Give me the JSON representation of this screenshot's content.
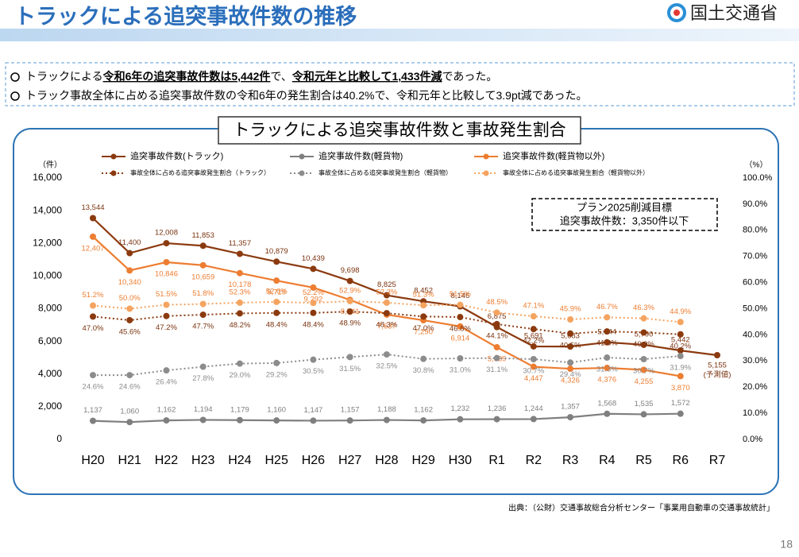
{
  "header": {
    "title": "トラックによる追突事故件数の推移",
    "organization": "国土交通省"
  },
  "bullets": [
    [
      {
        "text": "トラックによる"
      },
      {
        "text": "令和6年の追突事故件数は5,442件",
        "strong": true
      },
      {
        "text": "で、"
      },
      {
        "text": "令和元年と比較して1,433件減",
        "strong": true
      },
      {
        "text": "であった。"
      }
    ],
    [
      {
        "text": "トラック事故全体に占める追突事故件数の令和6年の発生割合は40.2%で、令和元年と比較して3.9pt減であった。"
      }
    ]
  ],
  "chart_data": {
    "type": "line",
    "title": "トラックによる追突事故件数と事故発生割合",
    "y_label": "（件）",
    "y2_label": "（%）",
    "categories": [
      "H20",
      "H21",
      "H22",
      "H23",
      "H24",
      "H25",
      "H26",
      "H27",
      "H28",
      "H29",
      "H30",
      "R1",
      "R2",
      "R3",
      "R4",
      "R5",
      "R6",
      "R7"
    ],
    "ylim": [
      0,
      16000
    ],
    "yticks": [
      0,
      {
        "value": 2000,
        "label": "2,000"
      },
      {
        "value": 4000,
        "label": "4,000"
      },
      {
        "value": 6000,
        "label": "6,000"
      },
      {
        "value": 8000,
        "label": "8,000"
      },
      {
        "value": 10000,
        "label": "10,000"
      },
      {
        "value": 12000,
        "label": "12,000"
      },
      {
        "value": 14000,
        "label": "14,000"
      },
      {
        "value": 16000,
        "label": "16,000"
      }
    ],
    "y2lim": [
      0,
      100
    ],
    "y2ticks": [
      {
        "value": 0,
        "label": "0.0%"
      },
      {
        "value": 10,
        "label": "10.0%"
      },
      {
        "value": 20,
        "label": "20.0%"
      },
      {
        "value": 30,
        "label": "30.0%"
      },
      {
        "value": 40,
        "label": "40.0%"
      },
      {
        "value": 50,
        "label": "50.0%"
      },
      {
        "value": 60,
        "label": "60.0%"
      },
      {
        "value": 70,
        "label": "70.0%"
      },
      {
        "value": 80,
        "label": "80.0%"
      },
      {
        "value": 90,
        "label": "90.0%"
      },
      {
        "value": 100,
        "label": "100.0%"
      }
    ],
    "series": [
      {
        "name": "追突事故件数(トラック)",
        "color": "#8b3a0f",
        "style": "solid",
        "values": [
          13544,
          11400,
          12008,
          11853,
          11357,
          10879,
          10439,
          9698,
          8825,
          8452,
          8146,
          6875,
          5691,
          5683,
          5944,
          5790,
          5442,
          5155
        ],
        "value_labels": [
          "13,544",
          "11,400",
          "12,008",
          "11,853",
          "11,357",
          "10,879",
          "10,439",
          "9,698",
          "8,825",
          "8,452",
          "8,146",
          "6,875",
          "5,691",
          "5,683",
          "5,944",
          "5,790",
          "5,442",
          "5,155"
        ]
      },
      {
        "name": "追突事故件数(軽貨物)",
        "color": "#7f7f7f",
        "style": "solid",
        "values": [
          1137,
          1060,
          1162,
          1194,
          1179,
          1160,
          1147,
          1157,
          1188,
          1162,
          1232,
          1236,
          1244,
          1357,
          1568,
          1535,
          1572,
          null
        ],
        "value_labels": [
          "1,137",
          "1,060",
          "1,162",
          "1,194",
          "1,179",
          "1,160",
          "1,147",
          "1,157",
          "1,188",
          "1,162",
          "1,232",
          "1,236",
          "1,244",
          "1,357",
          "1,568",
          "1,535",
          "1,572",
          null
        ]
      },
      {
        "name": "追突事故件数(軽貨物以外)",
        "color": "#ed7d31",
        "style": "solid",
        "values": [
          12407,
          10340,
          10846,
          10659,
          10178,
          9719,
          9292,
          8541,
          7637,
          7290,
          6914,
          5639,
          4447,
          4326,
          4376,
          4255,
          3870,
          null
        ],
        "value_labels": [
          "12,407",
          "10,340",
          "10,846",
          "10,659",
          "10,178",
          "9,719",
          "9,292",
          "8,541",
          "7,637",
          "7,290",
          "6,914",
          "5,639",
          "4,447",
          "4,326",
          "4,376",
          "4,255",
          "3,870",
          null
        ]
      },
      {
        "name": "事故全体に占める追突事故発生割合（トラック）",
        "color": "#8b3a0f",
        "style": "dotted",
        "axis": "y2",
        "values": [
          47.0,
          45.6,
          47.2,
          47.7,
          48.2,
          48.4,
          48.4,
          48.9,
          48.3,
          47.0,
          46.8,
          44.1,
          42.2,
          40.5,
          41.3,
          40.9,
          40.2,
          null
        ],
        "value_labels": [
          "47.0%",
          "45.6%",
          "47.2%",
          "47.7%",
          "48.2%",
          "48.4%",
          "48.4%",
          "48.9%",
          "48.3%",
          "47.0%",
          "46.8%",
          "44.1%",
          "42.2%",
          "40.5%",
          "41.3%",
          "40.9%",
          "40.2%",
          null
        ]
      },
      {
        "name": "事故全体に占める追突事故発生割合（軽貨物）",
        "color": "#8c8c8c",
        "style": "dotted",
        "axis": "y2",
        "values": [
          24.6,
          24.6,
          26.4,
          27.8,
          29.0,
          29.2,
          30.5,
          31.5,
          32.5,
          30.8,
          31.0,
          31.1,
          30.7,
          29.4,
          31.3,
          30.7,
          31.9,
          null
        ],
        "value_labels": [
          "24.6%",
          "24.6%",
          "26.4%",
          "27.8%",
          "29.0%",
          "29.2%",
          "30.5%",
          "31.5%",
          "32.5%",
          "30.8%",
          "31.0%",
          "31.1%",
          "30.7%",
          "29.4%",
          "31.3%",
          "30.7%",
          "31.9%",
          null
        ]
      },
      {
        "name": "事故全体に占める追突事故発生割合（軽貨物以外）",
        "color": "#f4a460",
        "style": "dotted",
        "axis": "y2",
        "values": [
          51.2,
          50.0,
          51.5,
          51.8,
          52.3,
          52.6,
          52.2,
          52.9,
          52.3,
          51.3,
          51.5,
          48.5,
          47.1,
          45.9,
          46.7,
          46.3,
          44.9,
          null
        ],
        "value_labels": [
          "51.2%",
          "50.0%",
          "51.5%",
          "51.8%",
          "52.3%",
          "52.6%",
          "52.2%",
          "52.9%",
          "52.3%",
          "51.3%",
          "51.5%",
          "48.5%",
          "47.1%",
          "45.9%",
          "46.7%",
          "46.3%",
          "44.9%",
          null
        ]
      }
    ],
    "forecast_note": "(予測値)",
    "target_box": [
      "プラン2025削減目標",
      "追突事故件数：3,350件以下"
    ]
  },
  "source": "出典：（公財）交通事故総合分析センター「事業用自動車の交通事故統計」",
  "page_number": "18"
}
